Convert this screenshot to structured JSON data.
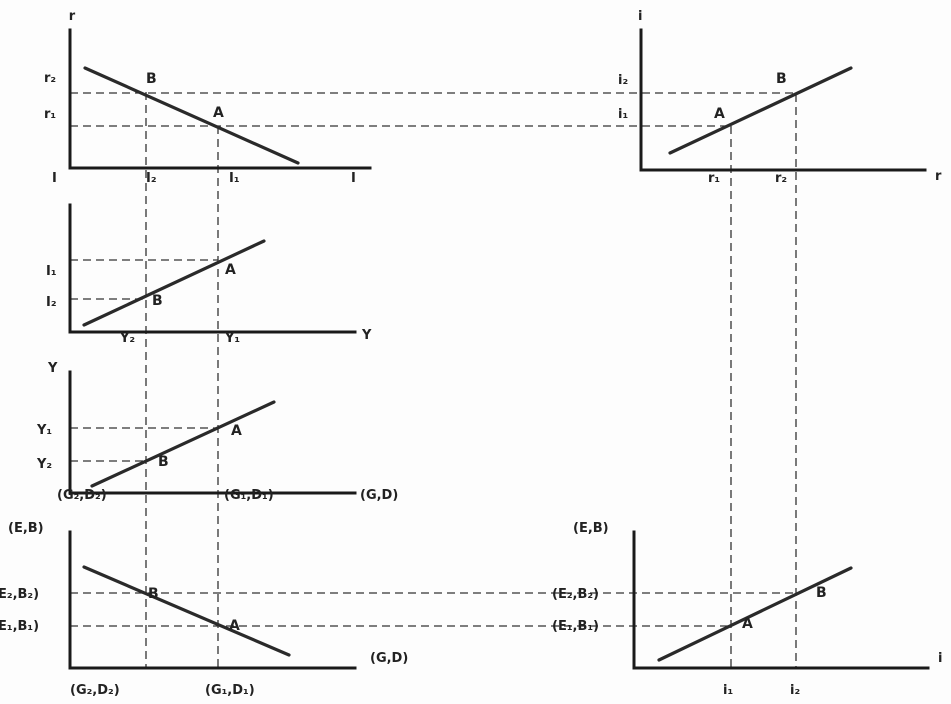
{
  "p1": {
    "axis_y": "r",
    "axis_x_left": "I",
    "axis_x_right": "I",
    "y_r2": "r₂",
    "y_r1": "r₁",
    "x_I2": "I₂",
    "x_I1": "I₁",
    "pt_b": "B",
    "pt_a": "A"
  },
  "p2": {
    "y_I1": "I₁",
    "y_I2": "I₂",
    "x_Y2": "Y₂",
    "x_Y1": "Y₁",
    "axis_x": "Y",
    "pt_a": "A",
    "pt_b": "B"
  },
  "p3": {
    "axis_y": "Y",
    "y_Y1": "Y₁",
    "y_Y2": "Y₂",
    "x_G2": "(G₂,D₂)",
    "x_G1": "(G₁,D₁)",
    "axis_x": "(G,D)",
    "pt_a": "A",
    "pt_b": "B"
  },
  "p4": {
    "axis_y": "(E,B)",
    "y_E2": "E₂,B₂)",
    "y_E1": "E₁,B₁)",
    "x_G2": "(G₂,D₂)",
    "x_G1": "(G₁,D₁)",
    "axis_x": "(G,D)",
    "pt_b": "B",
    "pt_a": "A"
  },
  "p5": {
    "axis_y": "i",
    "y_i2": "i₂",
    "y_i1": "i₁",
    "x_r1": "r₁",
    "x_r2": "r₂",
    "axis_x": "r",
    "pt_a": "A",
    "pt_b": "B"
  },
  "p6": {
    "axis_y": "(E,B)",
    "y_E2": "(E₂,B₂)",
    "y_E1": "(E₁,B₁)",
    "x_i1": "i₁",
    "x_i2": "i₂",
    "axis_x": "i",
    "pt_b": "B",
    "pt_a": "A"
  }
}
